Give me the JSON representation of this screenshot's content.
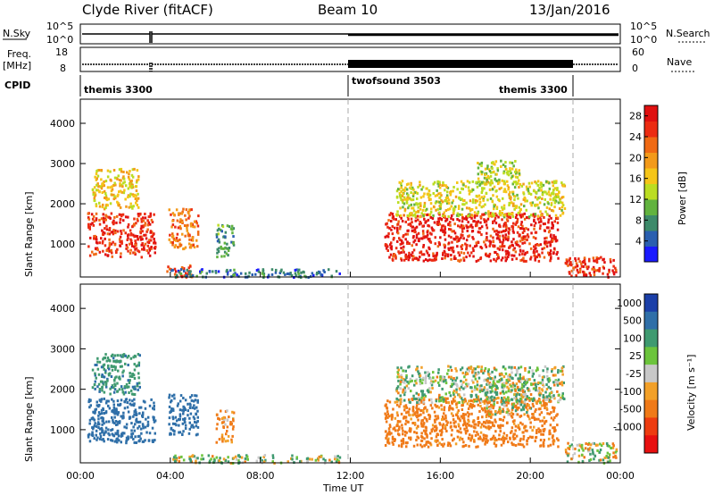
{
  "header": {
    "station": "Clyde River (fitACF)",
    "beam": "Beam 10",
    "date": "13/Jan/2016"
  },
  "top_panels": {
    "nsky_label": "N.Sky",
    "nsky_left_ticks": [
      "10^5",
      "10^0"
    ],
    "nsearch_label": "N.Search",
    "nsearch_right_ticks": [
      "10^5",
      "10^0"
    ],
    "freq_label_line1": "Freq.",
    "freq_label_line2": "[MHz]",
    "freq_ticks": [
      "18",
      "8"
    ],
    "nave_label": "Nave",
    "nave_ticks": [
      "60",
      "0"
    ],
    "cpid_label": "CPID",
    "cpid_segments": [
      {
        "name": "themis 3300",
        "start_hour": 0,
        "end_hour": 12
      },
      {
        "name": "twofsound 3503",
        "start_hour": 12,
        "end_hour": 22
      },
      {
        "name": "themis 3300",
        "start_hour": 22,
        "end_hour": 24
      }
    ]
  },
  "x_axis": {
    "title": "Time UT",
    "ticks": [
      "00:00",
      "04:00",
      "08:00",
      "12:00",
      "16:00",
      "20:00",
      "00:00"
    ],
    "range_hours": [
      0,
      24
    ]
  },
  "y_axis": {
    "title": "Slant Range [km]",
    "ticks": [
      "1000",
      "2000",
      "3000",
      "4000"
    ],
    "range_km": [
      180,
      4600
    ]
  },
  "power_colorbar": {
    "title": "Power [dB]",
    "ticks": [
      "4",
      "8",
      "12",
      "16",
      "20",
      "24",
      "28"
    ],
    "range": [
      0,
      30
    ],
    "colors": [
      "#1a1aff",
      "#2a5fb0",
      "#3d8a6a",
      "#62b33f",
      "#bbdd22",
      "#f5c518",
      "#f39a1a",
      "#f06a14",
      "#ec2c12",
      "#e01010"
    ]
  },
  "velocity_colorbar": {
    "title": "Velocity [m s⁻¹]",
    "ticks": [
      "1000",
      "500",
      "100",
      "25",
      "-25",
      "-100",
      "-500",
      "-1000"
    ],
    "colors": [
      "#1b3fa8",
      "#2f6fa8",
      "#3f9a70",
      "#6cc43c",
      "#c8c8c8",
      "#f2a028",
      "#f07a18",
      "#ee3c10",
      "#e81010"
    ]
  },
  "chart_data": {
    "type": "heatmap",
    "x_unit": "hours UT",
    "y_unit": "km",
    "panels": [
      {
        "name": "power",
        "scatter_regions": [
          {
            "t": [
              0.3,
              3.3
            ],
            "r": [
              700,
              1800
            ],
            "value": 26
          },
          {
            "t": [
              0.5,
              2.6
            ],
            "r": [
              1900,
              2900
            ],
            "value": 17
          },
          {
            "t": [
              3.9,
              5.2
            ],
            "r": [
              900,
              1900
            ],
            "value": 22
          },
          {
            "t": [
              6.0,
              6.8
            ],
            "r": [
              700,
              1500
            ],
            "value": 9
          },
          {
            "t": [
              3.8,
              5.0
            ],
            "r": [
              200,
              500
            ],
            "value": 24
          },
          {
            "t": [
              4.0,
              11.5
            ],
            "r": [
              200,
              400
            ],
            "value": 6
          },
          {
            "t": [
              13.5,
              21.2
            ],
            "r": [
              600,
              1800
            ],
            "value": 27
          },
          {
            "t": [
              14.0,
              21.5
            ],
            "r": [
              1700,
              2600
            ],
            "value": 15
          },
          {
            "t": [
              17.5,
              19.5
            ],
            "r": [
              2500,
              3100
            ],
            "value": 13
          },
          {
            "t": [
              21.5,
              23.8
            ],
            "r": [
              200,
              700
            ],
            "value": 26
          }
        ]
      },
      {
        "name": "velocity",
        "scatter_regions": [
          {
            "t": [
              0.3,
              3.3
            ],
            "r": [
              700,
              1800
            ],
            "value": 800
          },
          {
            "t": [
              0.5,
              2.6
            ],
            "r": [
              1900,
              2900
            ],
            "value": 400
          },
          {
            "t": [
              3.9,
              5.2
            ],
            "r": [
              900,
              1900
            ],
            "value": 700
          },
          {
            "t": [
              6.0,
              6.8
            ],
            "r": [
              700,
              1500
            ],
            "value": -150
          },
          {
            "t": [
              4.0,
              11.5
            ],
            "r": [
              200,
              400
            ],
            "value": 60
          },
          {
            "t": [
              13.5,
              21.2
            ],
            "r": [
              600,
              1800
            ],
            "value": -250
          },
          {
            "t": [
              14.0,
              21.5
            ],
            "r": [
              1700,
              2600
            ],
            "value": 60
          },
          {
            "t": [
              18.0,
              20.0
            ],
            "r": [
              1400,
              2300
            ],
            "value": 0
          },
          {
            "t": [
              21.5,
              23.8
            ],
            "r": [
              200,
              700
            ],
            "value": 0
          }
        ]
      }
    ]
  }
}
